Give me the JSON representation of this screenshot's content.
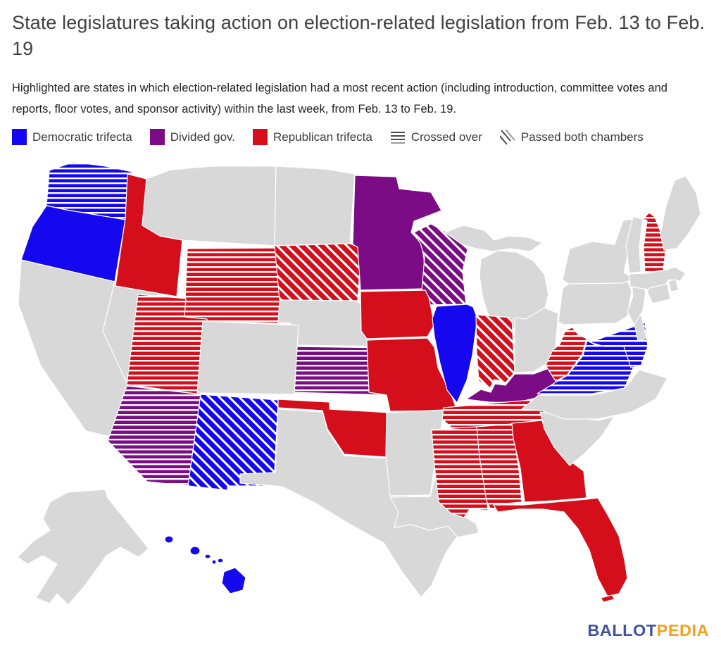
{
  "header": {
    "title": "State legislatures taking action on election-related legislation from Feb. 13 to Feb. 19",
    "subtitle": "Highlighted are states in which election-related legislation had a most recent action (including introduction, committee votes and reports, floor votes, and sponsor activity) within the last week, from Feb. 13 to Feb. 19."
  },
  "legend": {
    "items": [
      {
        "label": "Democratic trifecta",
        "type": "swatch",
        "color": "#1508ef"
      },
      {
        "label": "Divided gov.",
        "type": "swatch",
        "color": "#7b0c86"
      },
      {
        "label": "Republican trifecta",
        "type": "swatch",
        "color": "#d40e1a"
      },
      {
        "label": "Crossed over",
        "type": "pattern",
        "pattern": "horizontal-lines"
      },
      {
        "label": "Passed both chambers",
        "type": "pattern",
        "pattern": "diagonal-lines"
      }
    ]
  },
  "map": {
    "colors": {
      "democratic_trifecta": "#1508ef",
      "divided_government": "#7b0c86",
      "republican_trifecta": "#d40e1a",
      "no_action": "#d8d8d8",
      "border": "#ffffff",
      "stripe": "#ffffff"
    },
    "states": [
      {
        "abbr": "WA",
        "name": "Washington",
        "status": "democratic-trifecta",
        "pattern": "crossed-over"
      },
      {
        "abbr": "OR",
        "name": "Oregon",
        "status": "democratic-trifecta",
        "pattern": "solid"
      },
      {
        "abbr": "CA",
        "name": "California",
        "status": "no-action",
        "pattern": "solid"
      },
      {
        "abbr": "NV",
        "name": "Nevada",
        "status": "no-action",
        "pattern": "solid"
      },
      {
        "abbr": "ID",
        "name": "Idaho",
        "status": "republican-trifecta",
        "pattern": "solid"
      },
      {
        "abbr": "MT",
        "name": "Montana",
        "status": "no-action",
        "pattern": "solid"
      },
      {
        "abbr": "WY",
        "name": "Wyoming",
        "status": "republican-trifecta",
        "pattern": "crossed-over"
      },
      {
        "abbr": "ND",
        "name": "North Dakota",
        "status": "no-action",
        "pattern": "solid"
      },
      {
        "abbr": "SD",
        "name": "South Dakota",
        "status": "republican-trifecta",
        "pattern": "passed-both-chambers"
      },
      {
        "abbr": "NE",
        "name": "Nebraska",
        "status": "no-action",
        "pattern": "solid"
      },
      {
        "abbr": "KS",
        "name": "Kansas",
        "status": "divided-government",
        "pattern": "crossed-over"
      },
      {
        "abbr": "UT",
        "name": "Utah",
        "status": "republican-trifecta",
        "pattern": "crossed-over"
      },
      {
        "abbr": "CO",
        "name": "Colorado",
        "status": "no-action",
        "pattern": "solid"
      },
      {
        "abbr": "AZ",
        "name": "Arizona",
        "status": "divided-government",
        "pattern": "crossed-over"
      },
      {
        "abbr": "NM",
        "name": "New Mexico",
        "status": "democratic-trifecta",
        "pattern": "passed-both-chambers"
      },
      {
        "abbr": "OK",
        "name": "Oklahoma",
        "status": "republican-trifecta",
        "pattern": "solid"
      },
      {
        "abbr": "TX",
        "name": "Texas",
        "status": "no-action",
        "pattern": "solid"
      },
      {
        "abbr": "MN",
        "name": "Minnesota",
        "status": "divided-government",
        "pattern": "solid"
      },
      {
        "abbr": "WI",
        "name": "Wisconsin",
        "status": "divided-government",
        "pattern": "passed-both-chambers"
      },
      {
        "abbr": "IA",
        "name": "Iowa",
        "status": "republican-trifecta",
        "pattern": "solid"
      },
      {
        "abbr": "MO",
        "name": "Missouri",
        "status": "republican-trifecta",
        "pattern": "solid"
      },
      {
        "abbr": "AR",
        "name": "Arkansas",
        "status": "no-action",
        "pattern": "solid"
      },
      {
        "abbr": "LA",
        "name": "Louisiana",
        "status": "no-action",
        "pattern": "solid"
      },
      {
        "abbr": "MI",
        "name": "Michigan",
        "status": "no-action",
        "pattern": "solid"
      },
      {
        "abbr": "IL",
        "name": "Illinois",
        "status": "democratic-trifecta",
        "pattern": "solid"
      },
      {
        "abbr": "IN",
        "name": "Indiana",
        "status": "republican-trifecta",
        "pattern": "passed-both-chambers"
      },
      {
        "abbr": "OH",
        "name": "Ohio",
        "status": "no-action",
        "pattern": "solid"
      },
      {
        "abbr": "KY",
        "name": "Kentucky",
        "status": "divided-government",
        "pattern": "solid"
      },
      {
        "abbr": "TN",
        "name": "Tennessee",
        "status": "republican-trifecta",
        "pattern": "crossed-over"
      },
      {
        "abbr": "MS",
        "name": "Mississippi",
        "status": "republican-trifecta",
        "pattern": "crossed-over"
      },
      {
        "abbr": "AL",
        "name": "Alabama",
        "status": "republican-trifecta",
        "pattern": "crossed-over"
      },
      {
        "abbr": "GA",
        "name": "Georgia",
        "status": "republican-trifecta",
        "pattern": "solid"
      },
      {
        "abbr": "SC",
        "name": "South Carolina",
        "status": "no-action",
        "pattern": "solid"
      },
      {
        "abbr": "NC",
        "name": "North Carolina",
        "status": "no-action",
        "pattern": "solid"
      },
      {
        "abbr": "WV",
        "name": "West Virginia",
        "status": "republican-trifecta",
        "pattern": "crossed-over"
      },
      {
        "abbr": "VA",
        "name": "Virginia",
        "status": "democratic-trifecta",
        "pattern": "crossed-over"
      },
      {
        "abbr": "MD",
        "name": "Maryland",
        "status": "democratic-trifecta",
        "pattern": "crossed-over"
      },
      {
        "abbr": "DE",
        "name": "Delaware",
        "status": "no-action",
        "pattern": "solid"
      },
      {
        "abbr": "PA",
        "name": "Pennsylvania",
        "status": "no-action",
        "pattern": "solid"
      },
      {
        "abbr": "NJ",
        "name": "New Jersey",
        "status": "no-action",
        "pattern": "solid"
      },
      {
        "abbr": "NY",
        "name": "New York",
        "status": "no-action",
        "pattern": "solid"
      },
      {
        "abbr": "VT",
        "name": "Vermont",
        "status": "no-action",
        "pattern": "solid"
      },
      {
        "abbr": "NH",
        "name": "New Hampshire",
        "status": "republican-trifecta",
        "pattern": "crossed-over"
      },
      {
        "abbr": "ME",
        "name": "Maine",
        "status": "no-action",
        "pattern": "solid"
      },
      {
        "abbr": "MA",
        "name": "Massachusetts",
        "status": "no-action",
        "pattern": "solid"
      },
      {
        "abbr": "RI",
        "name": "Rhode Island",
        "status": "no-action",
        "pattern": "solid"
      },
      {
        "abbr": "CT",
        "name": "Connecticut",
        "status": "no-action",
        "pattern": "solid"
      },
      {
        "abbr": "FL",
        "name": "Florida",
        "status": "republican-trifecta",
        "pattern": "solid"
      },
      {
        "abbr": "AK",
        "name": "Alaska",
        "status": "no-action",
        "pattern": "solid"
      },
      {
        "abbr": "HI",
        "name": "Hawaii",
        "status": "democratic-trifecta",
        "pattern": "solid"
      }
    ]
  },
  "footer": {
    "logo_part1": "BALLOT",
    "logo_part2": "PEDIA",
    "logo_color1": "#3d54a5",
    "logo_color2": "#f6a01d"
  }
}
